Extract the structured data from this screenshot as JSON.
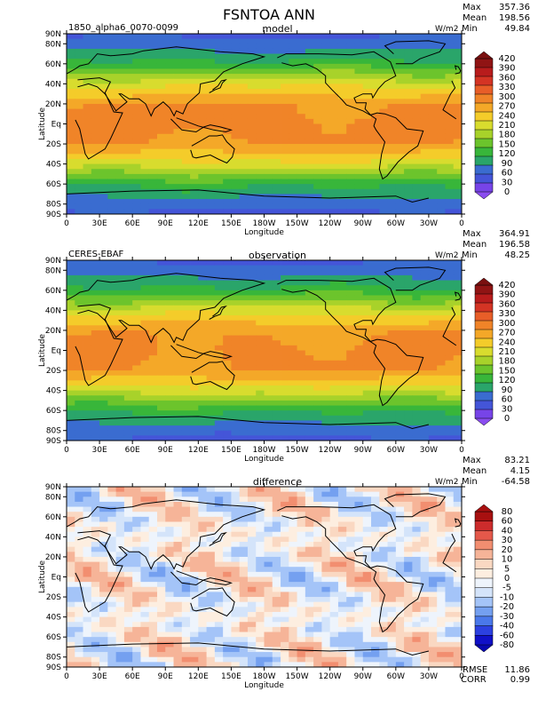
{
  "title": "FSNTOA ANN",
  "panels": [
    {
      "name": "model",
      "left_label": "1850_alpha6_0070-0099",
      "center_label": "model",
      "units": "W/m2",
      "stats": {
        "max_label": "Max",
        "max": "357.36",
        "mean_label": "Mean",
        "mean": "198.56",
        "min_label": "Min",
        "min": "49.84"
      },
      "colorbar": [
        "420",
        "390",
        "360",
        "330",
        "300",
        "270",
        "240",
        "210",
        "180",
        "150",
        "120",
        "90",
        "60",
        "30",
        "0"
      ]
    },
    {
      "name": "observation",
      "left_label": "CERES-EBAF",
      "center_label": "observation",
      "units": "W/m2",
      "stats": {
        "max_label": "Max",
        "max": "364.91",
        "mean_label": "Mean",
        "mean": "196.58",
        "min_label": "Min",
        "min": "48.25"
      },
      "colorbar": [
        "420",
        "390",
        "360",
        "330",
        "300",
        "270",
        "240",
        "210",
        "180",
        "150",
        "120",
        "90",
        "60",
        "30",
        "0"
      ]
    },
    {
      "name": "difference",
      "left_label": "",
      "center_label": "difference",
      "units": "W/m2",
      "stats": {
        "max_label": "Max",
        "max": "83.21",
        "mean_label": "Mean",
        "mean": "4.15",
        "min_label": "Min",
        "min": "-64.58"
      },
      "colorbar": [
        "80",
        "60",
        "40",
        "30",
        "20",
        "10",
        "5",
        "0",
        "-5",
        "-10",
        "-20",
        "-30",
        "-40",
        "-60",
        "-80"
      ],
      "rmse_label": "RMSE",
      "rmse": "11.86",
      "corr_label": "CORR",
      "corr": "0.99"
    }
  ],
  "axes": {
    "ylabel": "Latitude",
    "xlabel": "Longitude",
    "yticks": [
      "90N",
      "80N",
      "60N",
      "40N",
      "20N",
      "Eq",
      "20S",
      "40S",
      "60S",
      "80S",
      "90S"
    ],
    "xticks": [
      "0",
      "30E",
      "60E",
      "90E",
      "120E",
      "150E",
      "180W",
      "150W",
      "120W",
      "90W",
      "60W",
      "30W",
      "0"
    ]
  },
  "colors": {
    "absolute_scale": [
      "#7744e8",
      "#4455d8",
      "#3a6cd0",
      "#2aa56a",
      "#38b63a",
      "#6cc42c",
      "#a8d22a",
      "#d8dc2e",
      "#f4cc2a",
      "#f4a828",
      "#f08428",
      "#e85e28",
      "#d43424",
      "#b81c1c",
      "#901414"
    ],
    "difference_scale": [
      "#1010c8",
      "#2c40e0",
      "#4a78ea",
      "#74a0f0",
      "#a4c4f8",
      "#d4e4fa",
      "#eef4fc",
      "#fdeee0",
      "#fad8c2",
      "#f6b498",
      "#f28e70",
      "#e4584a",
      "#cc2c2c",
      "#a81010"
    ]
  },
  "chart_data": [
    {
      "type": "heatmap",
      "title": "model",
      "xlabel": "Longitude",
      "ylabel": "Latitude",
      "xlim": [
        0,
        360
      ],
      "ylim": [
        -90,
        90
      ],
      "color_levels": [
        0,
        30,
        60,
        90,
        120,
        150,
        180,
        210,
        240,
        270,
        300,
        330,
        360,
        390,
        420
      ],
      "zonal_mean_profile": {
        "lat": [
          90,
          80,
          60,
          40,
          20,
          0,
          -20,
          -40,
          -60,
          -80,
          -90
        ],
        "value": [
          55,
          70,
          130,
          230,
          300,
          310,
          300,
          230,
          130,
          70,
          50
        ]
      },
      "stats": {
        "max": 357.36,
        "mean": 198.56,
        "min": 49.84
      }
    },
    {
      "type": "heatmap",
      "title": "observation",
      "xlabel": "Longitude",
      "ylabel": "Latitude",
      "xlim": [
        0,
        360
      ],
      "ylim": [
        -90,
        90
      ],
      "color_levels": [
        0,
        30,
        60,
        90,
        120,
        150,
        180,
        210,
        240,
        270,
        300,
        330,
        360,
        390,
        420
      ],
      "zonal_mean_profile": {
        "lat": [
          90,
          80,
          60,
          40,
          20,
          0,
          -20,
          -40,
          -60,
          -80,
          -90
        ],
        "value": [
          55,
          70,
          130,
          225,
          295,
          305,
          300,
          225,
          125,
          70,
          50
        ]
      },
      "stats": {
        "max": 364.91,
        "mean": 196.58,
        "min": 48.25
      }
    },
    {
      "type": "heatmap",
      "title": "difference",
      "xlabel": "Longitude",
      "ylabel": "Latitude",
      "xlim": [
        0,
        360
      ],
      "ylim": [
        -90,
        90
      ],
      "color_levels": [
        -80,
        -60,
        -40,
        -30,
        -20,
        -10,
        -5,
        0,
        5,
        10,
        20,
        30,
        40,
        60,
        80
      ],
      "stats": {
        "max": 83.21,
        "mean": 4.15,
        "min": -64.58,
        "rmse": 11.86,
        "corr": 0.99
      }
    }
  ]
}
